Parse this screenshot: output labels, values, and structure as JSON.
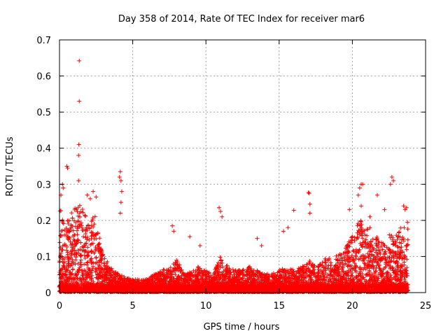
{
  "colors": {
    "series": "#ff0000",
    "axes": "#000000",
    "grid": "#a0a0a0"
  },
  "chart_data": {
    "type": "scatter",
    "title": "Day 358 of 2014, Rate Of TEC Index for receiver mar6",
    "xlabel": "GPS time / hours",
    "ylabel": "ROTI / TECUs",
    "xlim": [
      0,
      25
    ],
    "ylim": [
      0,
      0.7
    ],
    "xticks": [
      0,
      5,
      10,
      15,
      20,
      25
    ],
    "yticks": [
      0,
      0.1,
      0.2,
      0.3,
      0.4,
      0.5,
      0.6,
      0.7
    ],
    "xtick_labels": [
      "0",
      "5",
      "10",
      "15",
      "20",
      "25"
    ],
    "ytick_labels": [
      "0",
      "0.1",
      "0.2",
      "0.3",
      "0.4",
      "0.5",
      "0.6",
      "0.7"
    ],
    "grid": true,
    "marker": "+",
    "series": [
      {
        "name": "ROTI",
        "color": "#ff0000",
        "highlights": [
          [
            1.35,
            0.642
          ],
          [
            1.35,
            0.53
          ],
          [
            1.32,
            0.41
          ],
          [
            1.3,
            0.38
          ],
          [
            1.3,
            0.31
          ],
          [
            0.5,
            0.35
          ],
          [
            0.55,
            0.345
          ],
          [
            0.2,
            0.3
          ],
          [
            0.25,
            0.29
          ],
          [
            0.1,
            0.27
          ],
          [
            1.9,
            0.27
          ],
          [
            2.1,
            0.26
          ],
          [
            2.3,
            0.28
          ],
          [
            2.5,
            0.265
          ],
          [
            4.15,
            0.335
          ],
          [
            4.1,
            0.32
          ],
          [
            4.2,
            0.31
          ],
          [
            4.25,
            0.28
          ],
          [
            4.2,
            0.25
          ],
          [
            4.15,
            0.22
          ],
          [
            7.7,
            0.185
          ],
          [
            7.8,
            0.17
          ],
          [
            8.9,
            0.155
          ],
          [
            9.6,
            0.13
          ],
          [
            10.9,
            0.235
          ],
          [
            11.0,
            0.225
          ],
          [
            11.1,
            0.21
          ],
          [
            13.5,
            0.15
          ],
          [
            13.8,
            0.13
          ],
          [
            15.3,
            0.17
          ],
          [
            15.6,
            0.18
          ],
          [
            16.0,
            0.228
          ],
          [
            17.0,
            0.277
          ],
          [
            17.05,
            0.275
          ],
          [
            17.1,
            0.245
          ],
          [
            17.1,
            0.22
          ],
          [
            19.8,
            0.23
          ],
          [
            20.4,
            0.27
          ],
          [
            20.5,
            0.29
          ],
          [
            20.6,
            0.3
          ],
          [
            20.7,
            0.3
          ],
          [
            20.6,
            0.24
          ],
          [
            21.2,
            0.21
          ],
          [
            21.7,
            0.27
          ],
          [
            22.2,
            0.23
          ],
          [
            22.6,
            0.3
          ],
          [
            22.7,
            0.32
          ],
          [
            22.8,
            0.31
          ],
          [
            23.5,
            0.24
          ],
          [
            23.6,
            0.23
          ],
          [
            23.7,
            0.235
          ]
        ],
        "envelope": [
          [
            0,
            0.24
          ],
          [
            0.5,
            0.2
          ],
          [
            1.0,
            0.23
          ],
          [
            1.5,
            0.25
          ],
          [
            2.0,
            0.2
          ],
          [
            2.5,
            0.22
          ],
          [
            3.0,
            0.1
          ],
          [
            3.5,
            0.07
          ],
          [
            4.0,
            0.05
          ],
          [
            4.5,
            0.04
          ],
          [
            5.0,
            0.035
          ],
          [
            5.5,
            0.035
          ],
          [
            6.0,
            0.035
          ],
          [
            6.5,
            0.05
          ],
          [
            7.0,
            0.06
          ],
          [
            7.5,
            0.07
          ],
          [
            8.0,
            0.09
          ],
          [
            8.5,
            0.05
          ],
          [
            9.0,
            0.06
          ],
          [
            9.5,
            0.07
          ],
          [
            10.0,
            0.06
          ],
          [
            10.5,
            0.05
          ],
          [
            11.0,
            0.1
          ],
          [
            11.5,
            0.07
          ],
          [
            12.0,
            0.06
          ],
          [
            12.5,
            0.06
          ],
          [
            13.0,
            0.07
          ],
          [
            13.5,
            0.06
          ],
          [
            14.0,
            0.05
          ],
          [
            14.5,
            0.05
          ],
          [
            15.0,
            0.06
          ],
          [
            15.5,
            0.07
          ],
          [
            16.0,
            0.06
          ],
          [
            16.5,
            0.07
          ],
          [
            17.0,
            0.09
          ],
          [
            17.5,
            0.07
          ],
          [
            18.0,
            0.09
          ],
          [
            18.5,
            0.1
          ],
          [
            19.0,
            0.1
          ],
          [
            19.5,
            0.12
          ],
          [
            20.0,
            0.16
          ],
          [
            20.5,
            0.2
          ],
          [
            21.0,
            0.19
          ],
          [
            21.5,
            0.16
          ],
          [
            22.0,
            0.14
          ],
          [
            22.5,
            0.16
          ],
          [
            23.0,
            0.16
          ],
          [
            23.5,
            0.19
          ],
          [
            23.8,
            0.2
          ]
        ]
      }
    ]
  }
}
